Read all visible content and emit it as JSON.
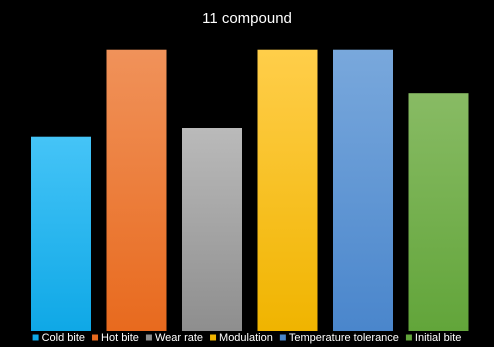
{
  "chart_data": {
    "type": "bar",
    "title": "11 compound",
    "categories": [
      "Cold bite",
      "Hot bite",
      "Wear rate",
      "Modulation",
      "Temperature tolerance",
      "Initial bite"
    ],
    "values": [
      6.7,
      9.7,
      7.0,
      9.7,
      9.7,
      8.2
    ],
    "ylim": [
      0,
      10
    ],
    "grid": false,
    "legend_position": "bottom",
    "colors": [
      {
        "top": "#45C4F7",
        "bottom": "#0FA8E6"
      },
      {
        "top": "#F0925A",
        "bottom": "#E86A1E"
      },
      {
        "top": "#BABABA",
        "bottom": "#8E8E8E"
      },
      {
        "top": "#FFCE4A",
        "bottom": "#F0B400"
      },
      {
        "top": "#79A8DC",
        "bottom": "#4A86CC"
      },
      {
        "top": "#88BB64",
        "bottom": "#62A53A"
      }
    ]
  }
}
